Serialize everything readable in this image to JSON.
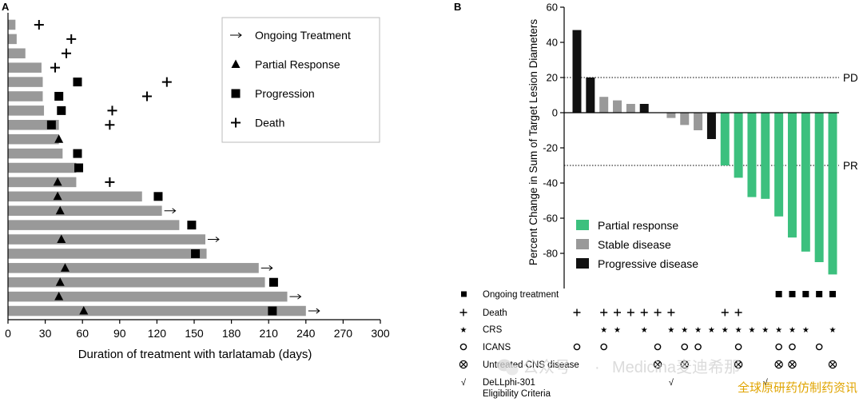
{
  "panels": [
    {
      "label": "A",
      "chart_data": {
        "type": "bar",
        "orientation": "horizontal",
        "xlabel": "Duration of treatment with tarlatamab (days)",
        "ylabel": "",
        "xlim": [
          0,
          300
        ],
        "xticks": [
          0,
          30,
          60,
          90,
          120,
          150,
          180,
          210,
          240,
          270,
          300
        ],
        "bar_color": "#999999",
        "legend": {
          "placement": "top-right",
          "entries": [
            {
              "label": "Ongoing Treatment",
              "marker": "arrow"
            },
            {
              "label": "Partial Response",
              "marker": "triangle"
            },
            {
              "label": "Progression",
              "marker": "square"
            },
            {
              "label": "Death",
              "marker": "plus"
            }
          ]
        },
        "patients": [
          {
            "duration": 6,
            "death": 25
          },
          {
            "duration": 7,
            "death": 51
          },
          {
            "duration": 14,
            "death": 47
          },
          {
            "duration": 27,
            "death": 38
          },
          {
            "duration": 28,
            "progression": 56,
            "death": 128
          },
          {
            "duration": 28,
            "progression": 41,
            "death": 112
          },
          {
            "duration": 29,
            "progression": 43,
            "death": 84
          },
          {
            "duration": 41,
            "progression": 35,
            "death": 82
          },
          {
            "duration": 41,
            "response": 41
          },
          {
            "duration": 44,
            "progression": 56
          },
          {
            "duration": 55,
            "progression": 57
          },
          {
            "duration": 55,
            "response": 40,
            "death": 82
          },
          {
            "duration": 108,
            "response": 40,
            "progression": 121
          },
          {
            "duration": 124,
            "response": 42,
            "ongoing": true
          },
          {
            "duration": 138,
            "progression": 148
          },
          {
            "duration": 159,
            "response": 43,
            "ongoing": true
          },
          {
            "duration": 160,
            "progression": 151
          },
          {
            "duration": 202,
            "response": 46,
            "ongoing": true
          },
          {
            "duration": 207,
            "response": 42,
            "progression": 214
          },
          {
            "duration": 225,
            "response": 41,
            "ongoing": true
          },
          {
            "duration": 240,
            "response": 61,
            "progression": 213,
            "ongoing": true
          }
        ]
      }
    },
    {
      "label": "B",
      "chart_data": {
        "type": "bar",
        "title": "",
        "ylabel": "Percent Change in Sum of Target Lesion Diameters",
        "ylim": [
          -100,
          60
        ],
        "yticks": [
          60,
          40,
          20,
          0,
          -20,
          -40,
          -60,
          -80
        ],
        "reference_lines": [
          {
            "value": 20,
            "label": "PD"
          },
          {
            "value": -30,
            "label": "PR"
          }
        ],
        "colors": {
          "PR": "#3cc07e",
          "SD": "#999999",
          "PD": "#111111"
        },
        "legend": {
          "placement": "bottom-left",
          "entries": [
            {
              "label": "Partial response",
              "key": "PR"
            },
            {
              "label": "Stable disease",
              "key": "SD"
            },
            {
              "label": "Progressive disease",
              "key": "PD"
            }
          ]
        },
        "values": [
          47,
          20,
          9,
          7,
          5,
          5,
          0,
          -3,
          -7,
          -10,
          -15,
          -30,
          -37,
          -48,
          -49,
          -59,
          -71,
          -79,
          -85,
          -92
        ],
        "responses": [
          "PD",
          "PD",
          "SD",
          "SD",
          "SD",
          "PD",
          "SD",
          "SD",
          "SD",
          "SD",
          "PD",
          "PR",
          "PR",
          "PR",
          "PR",
          "PR",
          "PR",
          "PR",
          "PR",
          "PR"
        ]
      },
      "annotation_table": {
        "rows": [
          {
            "label": "Ongoing treatment",
            "marker": "square",
            "glyph": "■",
            "positions": [
              15,
              16,
              17,
              18,
              19
            ]
          },
          {
            "label": "Death",
            "marker": "plus",
            "glyph": "+",
            "positions": [
              0,
              2,
              3,
              4,
              5,
              6,
              7,
              11,
              12
            ]
          },
          {
            "label": "CRS",
            "marker": "star",
            "glyph": "★",
            "positions": [
              2,
              3,
              5,
              7,
              8,
              9,
              10,
              11,
              12,
              13,
              14,
              15,
              16,
              17,
              19
            ]
          },
          {
            "label": "ICANS",
            "marker": "circle",
            "glyph": "o",
            "positions": [
              0,
              2,
              6,
              8,
              9,
              12,
              15,
              16,
              18
            ]
          },
          {
            "label": "Untreated CNS disease",
            "marker": "circle-x",
            "glyph": "⊗",
            "positions": [
              6,
              8,
              12,
              15,
              16,
              19
            ]
          },
          {
            "label": "DeLLphi-301\nEligibility Criteria",
            "marker": "check",
            "glyph": "√",
            "positions": [
              7,
              14
            ]
          }
        ]
      }
    }
  ],
  "watermark": {
    "account_prefix": "公众号",
    "separator": "·",
    "account_name": "Medicina麦迪希那",
    "footer": "全球原研药仿制药资讯",
    "footer_color": "#e0a400"
  }
}
